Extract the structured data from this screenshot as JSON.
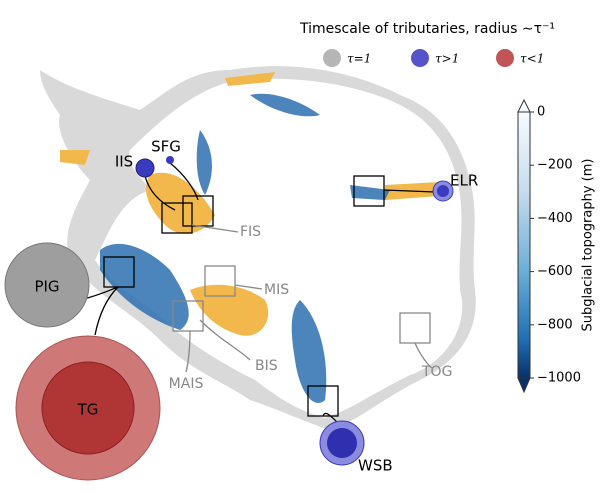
{
  "legend": {
    "title": "Timescale of tributaries, radius ∼τ⁻¹",
    "items": [
      "τ=1",
      "τ>1",
      "τ<1"
    ]
  },
  "regions": [
    "PIG",
    "TG",
    "IIS",
    "SFG",
    "ELR",
    "WSB",
    "FIS",
    "MIS",
    "BIS",
    "MAIS",
    "TOG"
  ],
  "colorbar": {
    "label": "Subglacial topography (m)",
    "lim": [
      -1000,
      0
    ],
    "ticks": [
      0,
      {
        "value": -200,
        "label": "−200"
      },
      {
        "value": -400,
        "label": "−400"
      },
      {
        "value": -600,
        "label": "−600"
      },
      {
        "value": -800,
        "label": "−800"
      },
      {
        "value": -1000,
        "label": "−1000"
      }
    ]
  }
}
